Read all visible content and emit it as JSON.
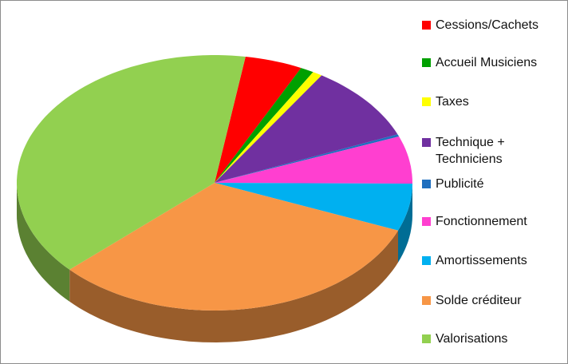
{
  "chart_data": {
    "type": "pie",
    "categories": [
      "Cessions/Cachets",
      "Accueil Musiciens",
      "Taxes",
      "Technique + Techniciens",
      "Publicité",
      "Fonctionnement",
      "Amortissements",
      "Solde créditeur",
      "Valorisations"
    ],
    "values": [
      4.7,
      1.1,
      0.8,
      9.7,
      0.3,
      6,
      6,
      32,
      39.4
    ],
    "colors": [
      "#ff0000",
      "#00a000",
      "#ffff00",
      "#7030a0",
      "#1f6fbf",
      "#ff3fd0",
      "#00b0f0",
      "#f79646",
      "#92d050"
    ],
    "legend": "right"
  }
}
